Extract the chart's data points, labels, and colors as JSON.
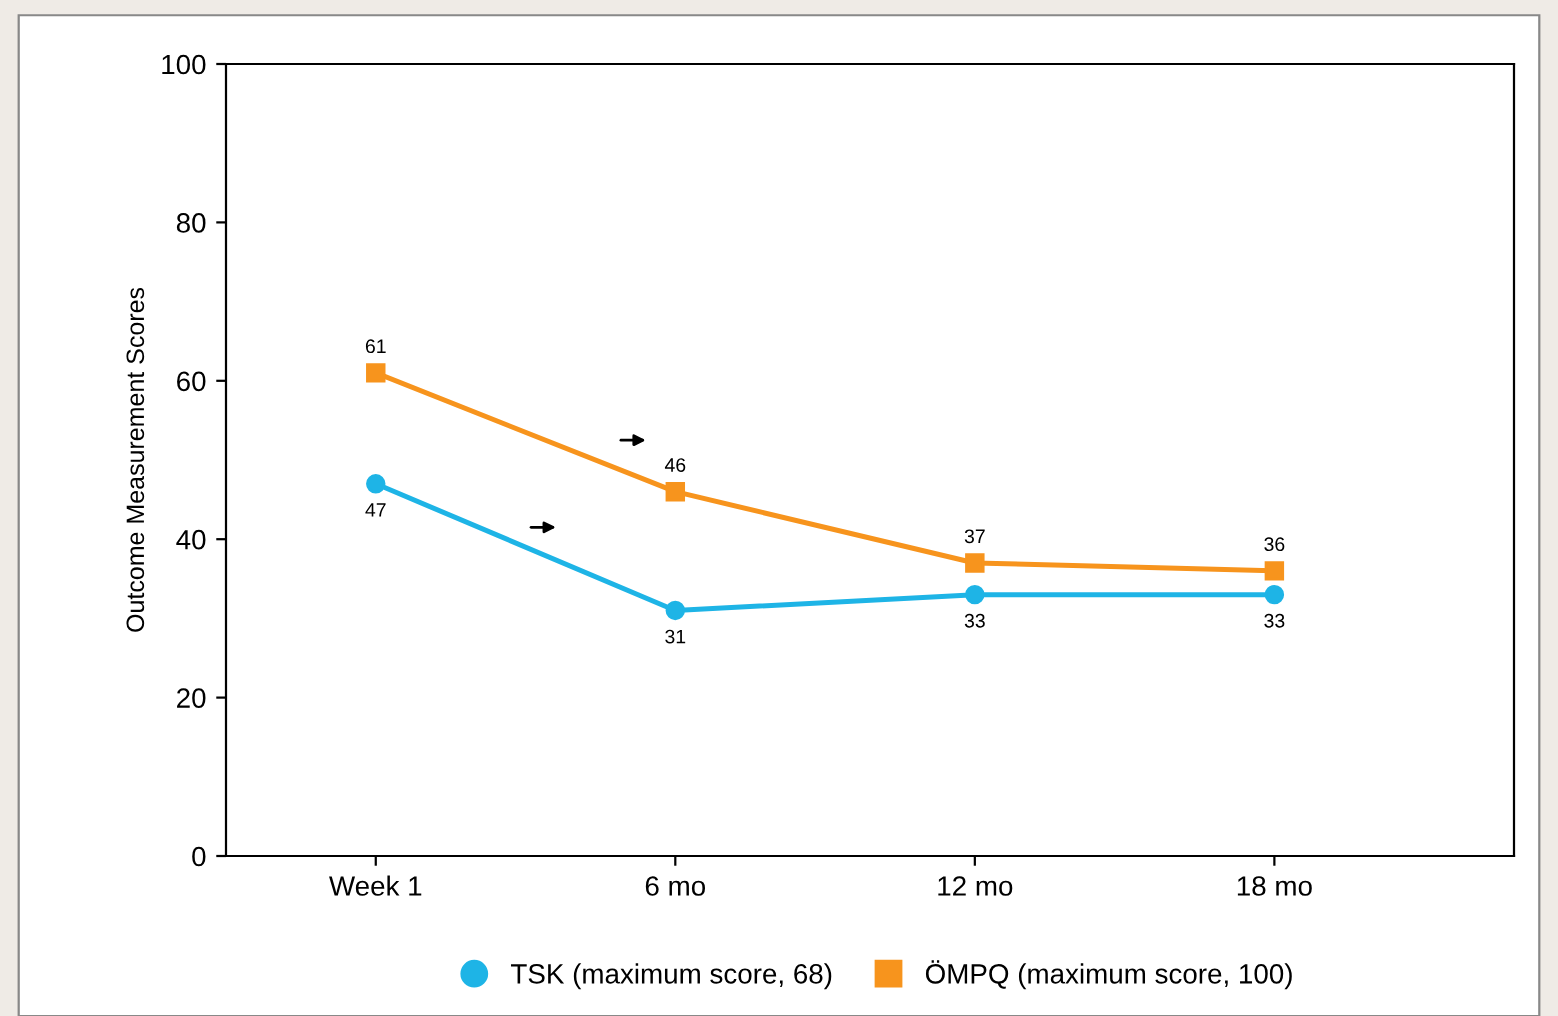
{
  "chart_data": {
    "type": "line",
    "ylabel": "Outcome Measurement Scores",
    "categories": [
      "Week 1",
      "6 mo",
      "12 mo",
      "18 mo"
    ],
    "series": [
      {
        "name": "TSK (maximum score, 68)",
        "color": "#1eb4e6",
        "marker": "circle",
        "values": [
          47,
          31,
          33,
          33
        ]
      },
      {
        "name": "ÖMPQ (maximum score, 100)",
        "color": "#f7941d",
        "marker": "square",
        "values": [
          61,
          46,
          37,
          36
        ]
      }
    ],
    "ylim": [
      0,
      100
    ],
    "yticks": [
      0,
      20,
      40,
      60,
      80,
      100
    ],
    "grid": false,
    "legend": "bottom",
    "data_labels": true
  }
}
